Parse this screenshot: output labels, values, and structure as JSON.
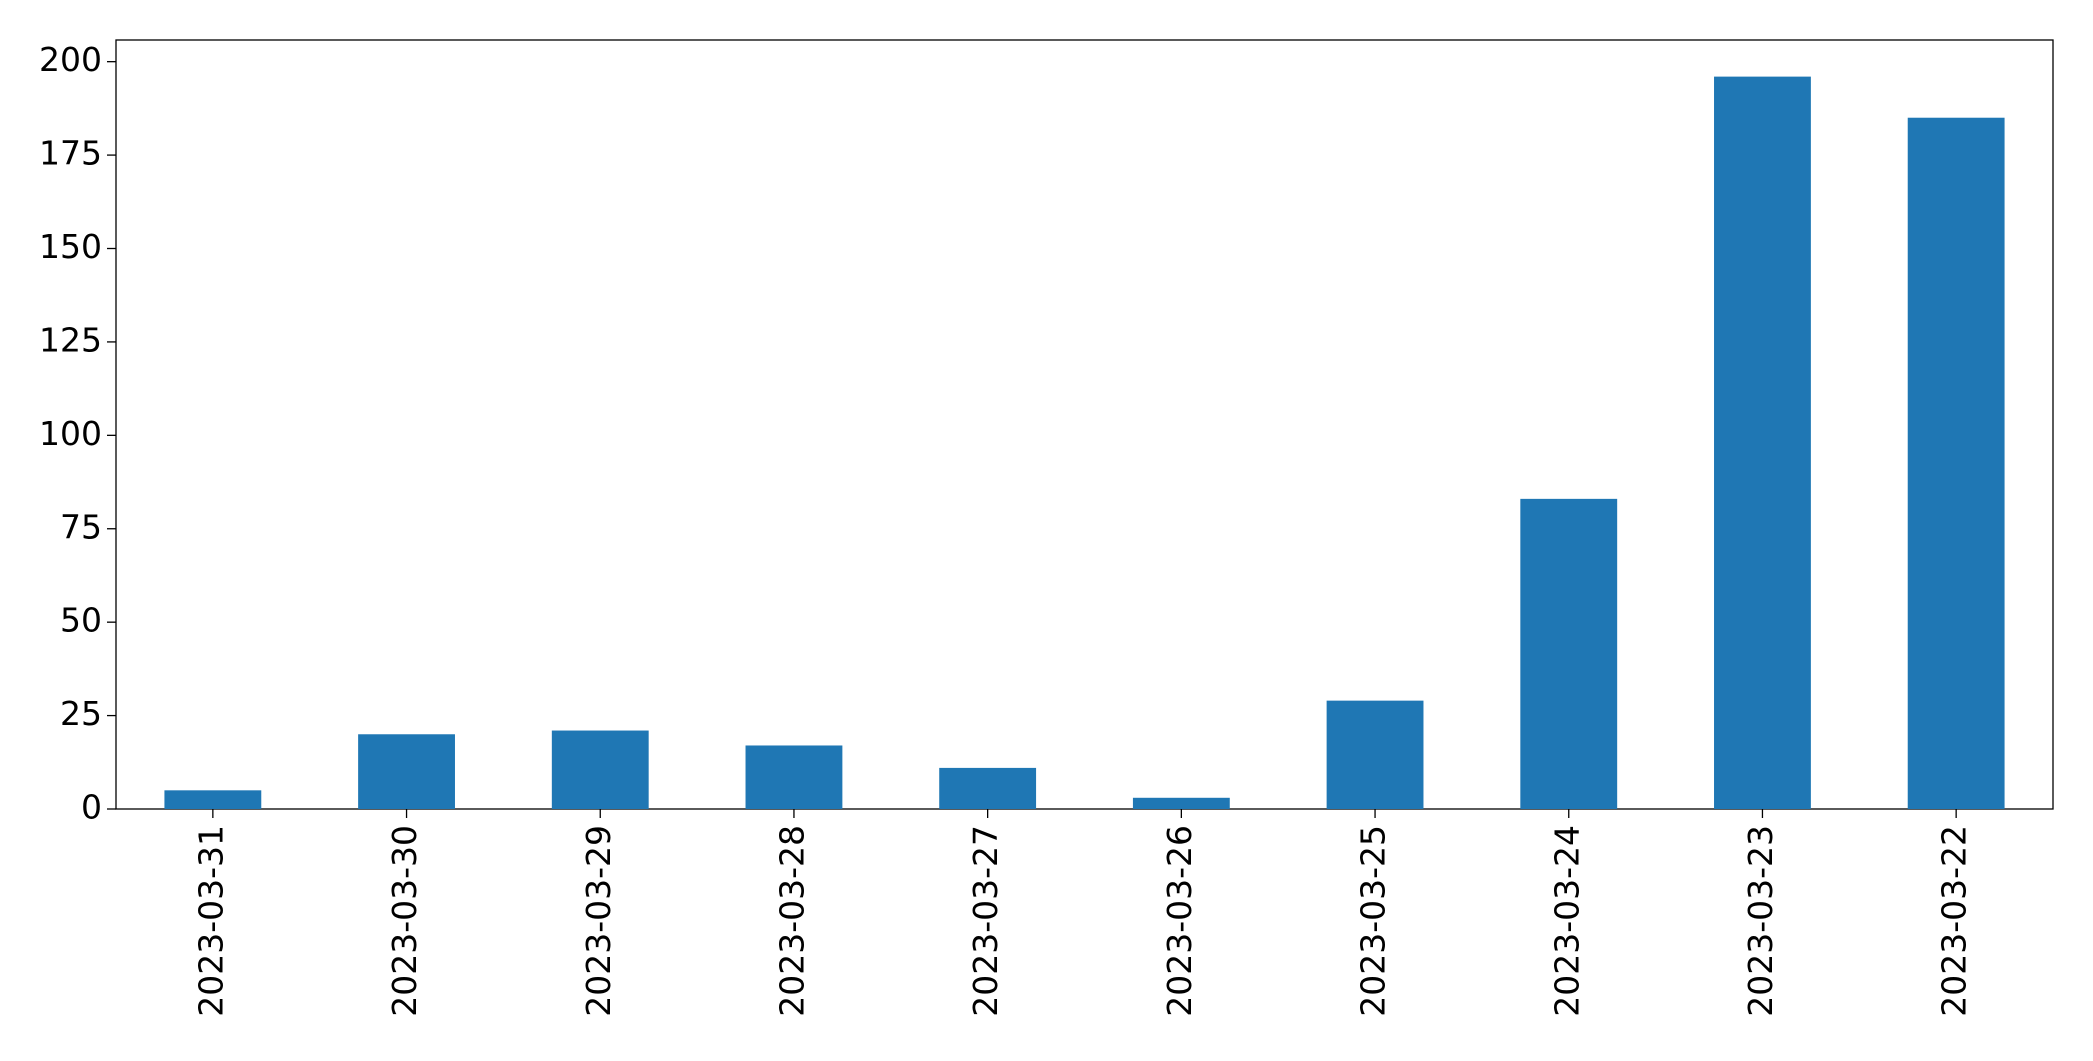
{
  "chart_data": {
    "type": "bar",
    "categories": [
      "2023-03-31",
      "2023-03-30",
      "2023-03-29",
      "2023-03-28",
      "2023-03-27",
      "2023-03-26",
      "2023-03-25",
      "2023-03-24",
      "2023-03-23",
      "2023-03-22"
    ],
    "values": [
      5,
      20,
      21,
      17,
      11,
      3,
      29,
      83,
      196,
      185
    ],
    "color": "#1f77b4",
    "ylim": [
      0,
      205.8
    ],
    "yticks": [
      0,
      25,
      50,
      75,
      100,
      125,
      150,
      175,
      200
    ],
    "grid": false
  }
}
